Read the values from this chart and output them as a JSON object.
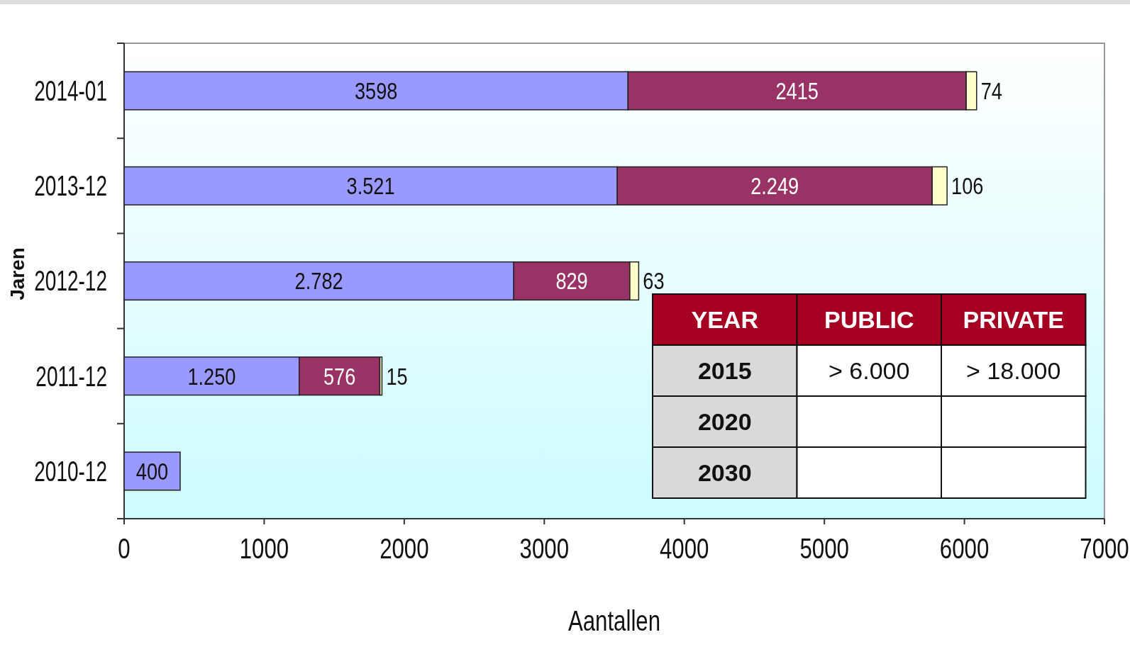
{
  "chart_data": [
    {
      "type": "bar",
      "orientation": "horizontal",
      "stacked": true,
      "xlabel": "Aantallen",
      "ylabel": "Jaren",
      "categories": [
        "2014-01",
        "2013-12",
        "2012-12",
        "2011-12",
        "2010-12"
      ],
      "series": [
        {
          "color": "#9999ff",
          "values": [
            3598,
            3521,
            2782,
            1250,
            400
          ],
          "value_labels": [
            "3598",
            "3.521",
            "2.782",
            "1.250",
            "400"
          ]
        },
        {
          "color": "#993366",
          "values": [
            2415,
            2249,
            829,
            576,
            null
          ],
          "value_labels": [
            "2415",
            "2.249",
            "829",
            "576",
            null
          ]
        },
        {
          "color": "#ffffcc",
          "values": [
            74,
            106,
            63,
            15,
            null
          ],
          "value_labels": [
            "74",
            "106",
            "63",
            "15",
            null
          ]
        }
      ],
      "xlim": [
        0,
        7000
      ],
      "xticks": [
        0,
        1000,
        2000,
        3000,
        4000,
        5000,
        6000,
        7000
      ],
      "grid": false
    },
    {
      "type": "other",
      "ylabel": "YEAR",
      "categories": [
        "PUBLIC",
        "PRIVATE"
      ],
      "y_categories": [
        "2015",
        "2020",
        "2030"
      ],
      "cell_labels": [
        [
          "> 6.000",
          "> 18.000"
        ],
        [
          null,
          null
        ],
        [
          null,
          null
        ]
      ]
    }
  ]
}
